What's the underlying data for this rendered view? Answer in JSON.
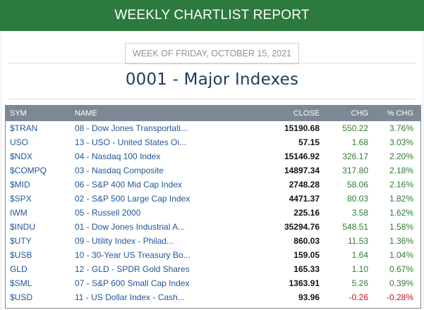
{
  "header": {
    "title": "WEEKLY CHARTLIST REPORT"
  },
  "report": {
    "week_label": "WEEK OF FRIDAY, OCTOBER 15, 2021",
    "list_title": "0001 - Major Indexes"
  },
  "table": {
    "columns": [
      "SYM",
      "NAME",
      "CLOSE",
      "CHG",
      "% CHG"
    ],
    "rows": [
      {
        "sym": "$TRAN",
        "name": "08 - Dow Jones Transportati...",
        "close": "15190.68",
        "chg": "550.22",
        "pct": "3.76%",
        "dir": "up"
      },
      {
        "sym": "USO",
        "name": "13 - USO - United States Oi...",
        "close": "57.15",
        "chg": "1.68",
        "pct": "3.03%",
        "dir": "up"
      },
      {
        "sym": "$NDX",
        "name": "04 - Nasdaq 100 Index",
        "close": "15146.92",
        "chg": "326.17",
        "pct": "2.20%",
        "dir": "up"
      },
      {
        "sym": "$COMPQ",
        "name": "03 - Nasdaq Composite",
        "close": "14897.34",
        "chg": "317.80",
        "pct": "2.18%",
        "dir": "up"
      },
      {
        "sym": "$MID",
        "name": "06 - S&P 400 Mid Cap Index",
        "close": "2748.28",
        "chg": "58.06",
        "pct": "2.16%",
        "dir": "up"
      },
      {
        "sym": "$SPX",
        "name": "02 - S&P 500 Large Cap Index",
        "close": "4471.37",
        "chg": "80.03",
        "pct": "1.82%",
        "dir": "up"
      },
      {
        "sym": "IWM",
        "name": "05 - Russell 2000",
        "close": "225.16",
        "chg": "3.58",
        "pct": "1.62%",
        "dir": "up"
      },
      {
        "sym": "$INDU",
        "name": "01 - Dow Jones Industrial A...",
        "close": "35294.76",
        "chg": "548.51",
        "pct": "1.58%",
        "dir": "up"
      },
      {
        "sym": "$UTY",
        "name": "09 - Utility Index - Philad...",
        "close": "860.03",
        "chg": "11.53",
        "pct": "1.36%",
        "dir": "up"
      },
      {
        "sym": "$USB",
        "name": "10 - 30-Year US Treasury Bo...",
        "close": "159.05",
        "chg": "1.64",
        "pct": "1.04%",
        "dir": "up"
      },
      {
        "sym": "GLD",
        "name": "12 - GLD - SPDR Gold Shares",
        "close": "165.33",
        "chg": "1.10",
        "pct": "0.67%",
        "dir": "up"
      },
      {
        "sym": "$SML",
        "name": "07 - S&P 600 Small Cap Index",
        "close": "1363.91",
        "chg": "5.26",
        "pct": "0.39%",
        "dir": "up"
      },
      {
        "sym": "$USD",
        "name": "11 - US Dollar Index - Cash...",
        "close": "93.96",
        "chg": "-0.26",
        "pct": "-0.28%",
        "dir": "down"
      }
    ]
  },
  "colors": {
    "banner": "#2c7a3d",
    "header_bg": "#7d8894",
    "link": "#1f5795",
    "positive": "#2f7d32",
    "negative": "#c0141b"
  }
}
